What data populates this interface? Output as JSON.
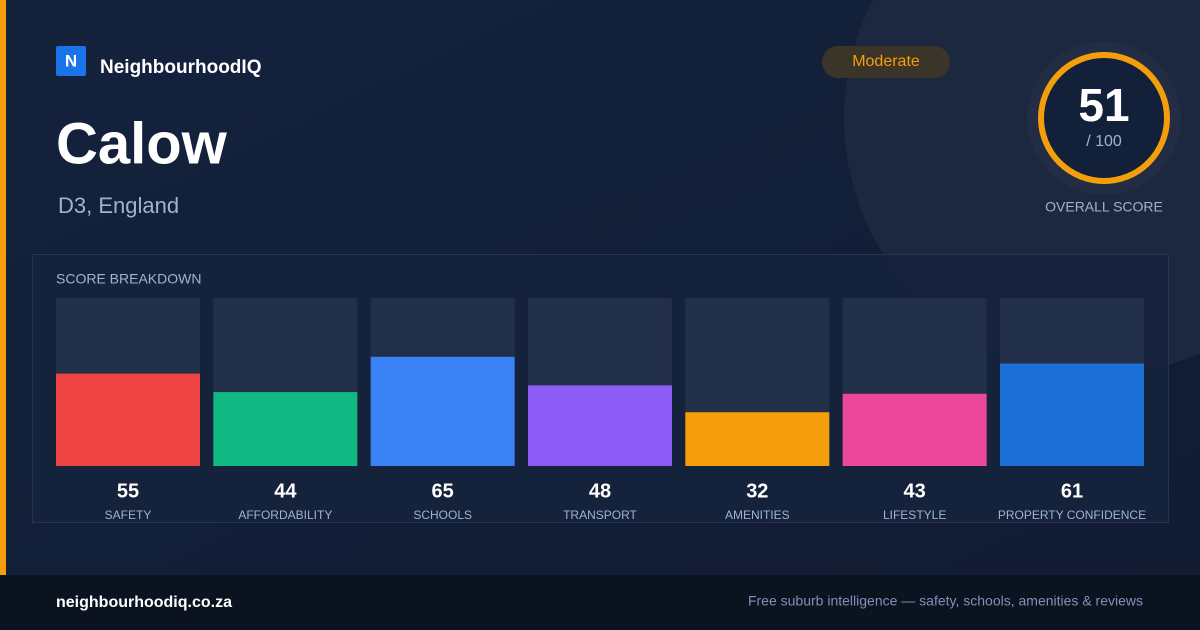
{
  "brand": {
    "logo": "N",
    "name": "NeighbourhoodIQ"
  },
  "place": {
    "name": "Calow",
    "region": "D3, England"
  },
  "badge": "Moderate",
  "overall": {
    "score": "51",
    "out_of": "/ 100",
    "label": "OVERALL SCORE"
  },
  "chart_data": {
    "type": "bar",
    "title": "SCORE BREAKDOWN",
    "categories": [
      "SAFETY",
      "AFFORDABILITY",
      "SCHOOLS",
      "TRANSPORT",
      "AMENITIES",
      "LIFESTYLE",
      "PROPERTY CONFIDENCE"
    ],
    "values": [
      55,
      44,
      65,
      48,
      32,
      43,
      61
    ],
    "colors": [
      "#ef4444",
      "#10b981",
      "#3b82f6",
      "#8b5cf6",
      "#f59e0b",
      "#ec4899",
      "#1d6fd8"
    ],
    "ylim": [
      0,
      100
    ]
  },
  "footer": {
    "site": "neighbourhoodiq.co.za",
    "tagline": "Free suburb intelligence — safety, schools, amenities & reviews"
  }
}
